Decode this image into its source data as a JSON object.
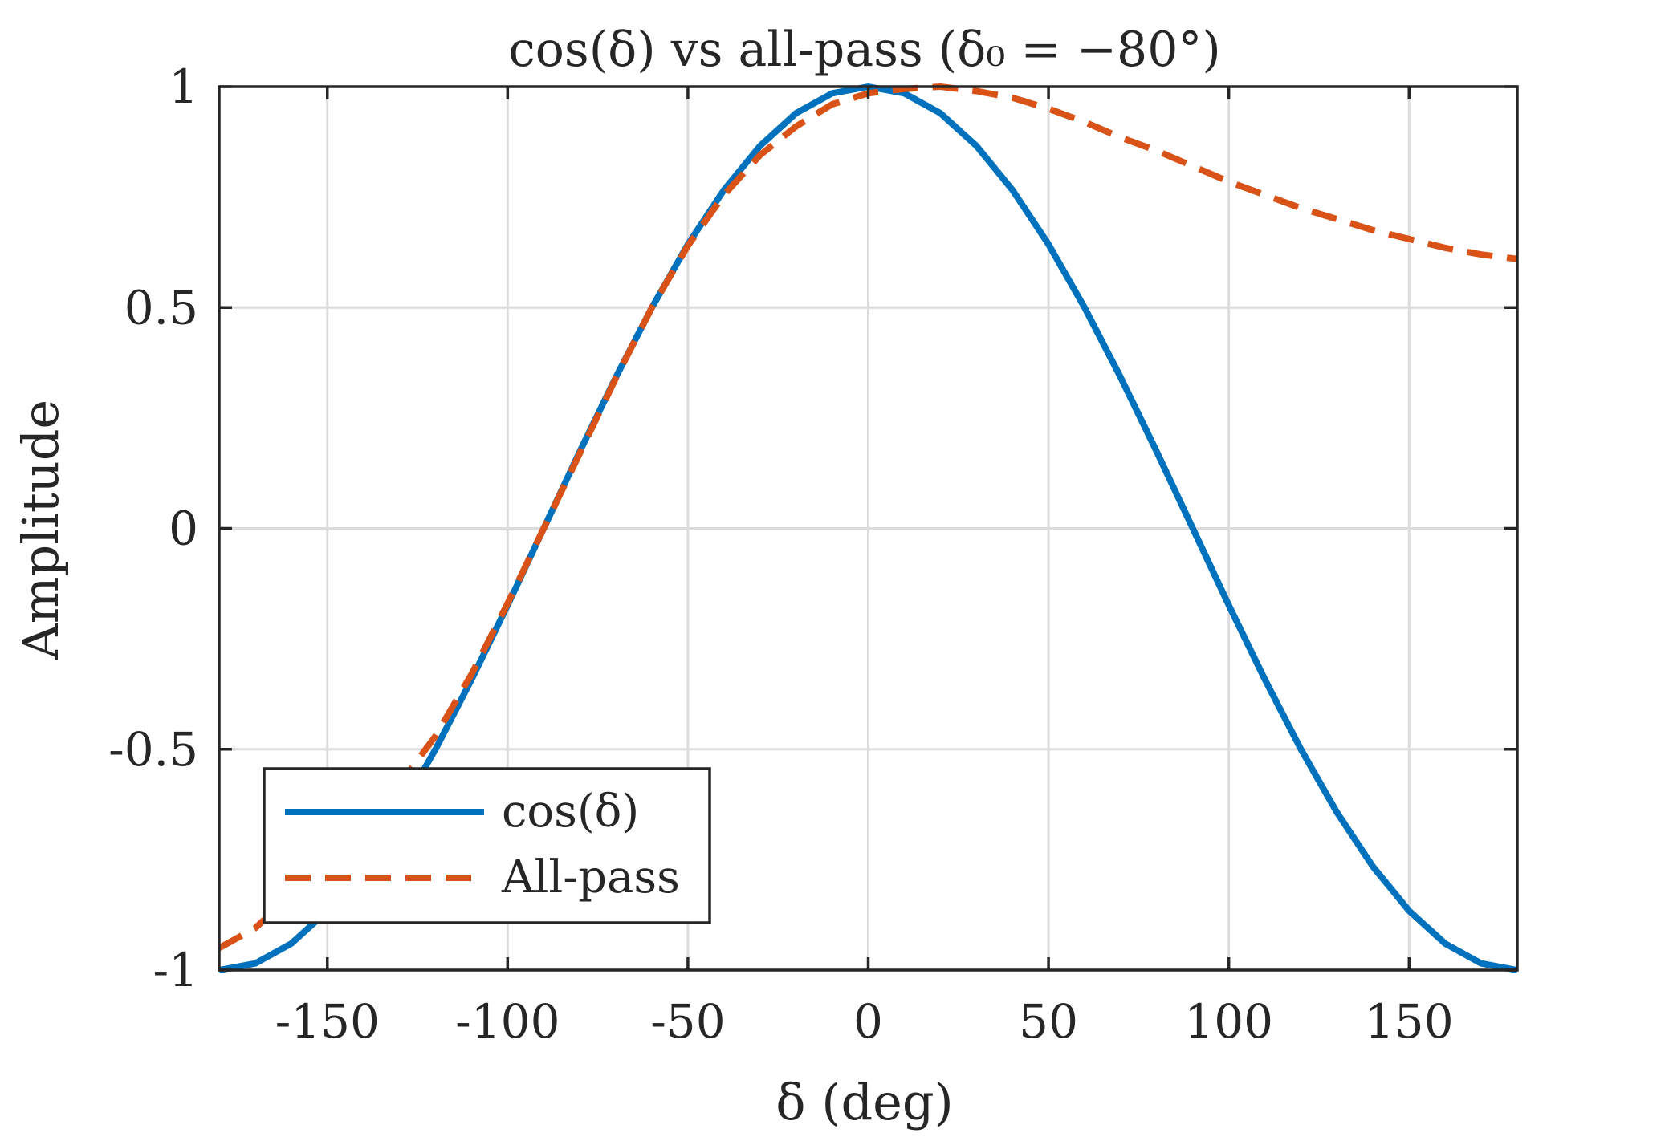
{
  "chart_data": {
    "type": "line",
    "title": "cos(δ) vs all-pass (δ₀ = −80°)",
    "xlabel": "δ (deg)",
    "ylabel": "Amplitude",
    "xlim": [
      -180,
      180
    ],
    "ylim": [
      -1,
      1
    ],
    "x_ticks": [
      -150,
      -100,
      -50,
      0,
      50,
      100,
      150
    ],
    "x_tick_labels": [
      "-150",
      "-100",
      "-50",
      "0",
      "50",
      "100",
      "150"
    ],
    "y_ticks": [
      -1,
      -0.5,
      0,
      0.5,
      1
    ],
    "y_tick_labels": [
      "-1",
      "-0.5",
      "0",
      "0.5",
      "1"
    ],
    "grid": true,
    "legend_position": "bottom-left",
    "series": [
      {
        "name": "cos(δ)",
        "style": "solid",
        "color": "#0072BD",
        "x": [
          -180,
          -170,
          -160,
          -150,
          -140,
          -130,
          -120,
          -110,
          -100,
          -90,
          -80,
          -70,
          -60,
          -50,
          -40,
          -30,
          -20,
          -10,
          0,
          10,
          20,
          30,
          40,
          50,
          60,
          70,
          80,
          90,
          100,
          110,
          120,
          130,
          140,
          150,
          160,
          170,
          180
        ],
        "y": [
          -1,
          -0.985,
          -0.94,
          -0.866,
          -0.766,
          -0.643,
          -0.5,
          -0.342,
          -0.174,
          0,
          0.174,
          0.342,
          0.5,
          0.643,
          0.766,
          0.866,
          0.94,
          0.985,
          1,
          0.985,
          0.94,
          0.866,
          0.766,
          0.643,
          0.5,
          0.342,
          0.174,
          0,
          -0.174,
          -0.342,
          -0.5,
          -0.643,
          -0.766,
          -0.866,
          -0.94,
          -0.985,
          -1
        ]
      },
      {
        "name": "All-pass",
        "style": "dashed",
        "color": "#D95319",
        "x": [
          -180,
          -170,
          -160,
          -150,
          -140,
          -130,
          -120,
          -110,
          -100,
          -90,
          -80,
          -70,
          -60,
          -50,
          -40,
          -30,
          -20,
          -10,
          0,
          10,
          20,
          30,
          40,
          50,
          60,
          70,
          80,
          90,
          100,
          110,
          120,
          130,
          140,
          150,
          160,
          170,
          180
        ],
        "y": [
          -0.95,
          -0.905,
          -0.83,
          -0.75,
          -0.665,
          -0.58,
          -0.47,
          -0.33,
          -0.17,
          0,
          0.17,
          0.34,
          0.5,
          0.64,
          0.755,
          0.845,
          0.91,
          0.96,
          0.985,
          0.995,
          1,
          0.99,
          0.975,
          0.95,
          0.92,
          0.885,
          0.855,
          0.82,
          0.785,
          0.755,
          0.725,
          0.7,
          0.675,
          0.655,
          0.635,
          0.62,
          0.61
        ]
      }
    ]
  }
}
